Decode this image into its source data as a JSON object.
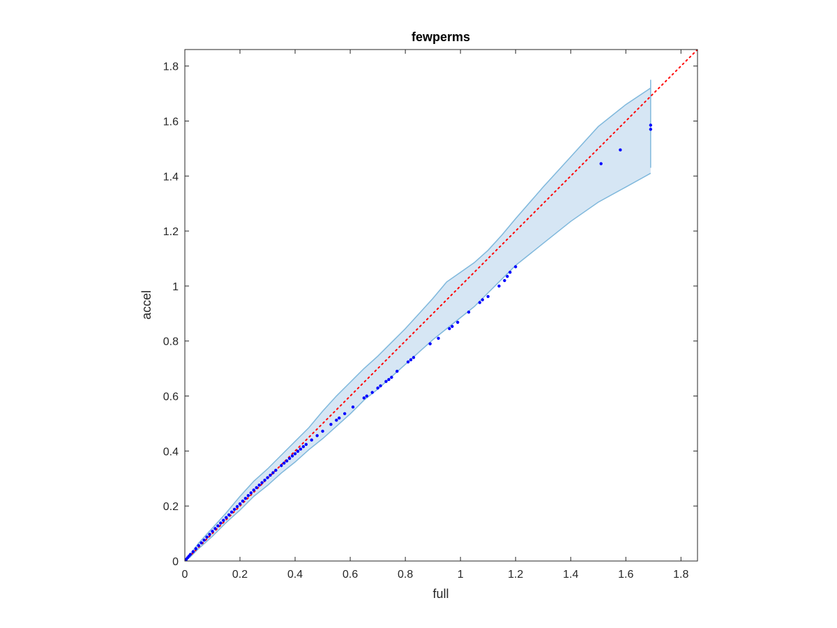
{
  "chart_data": {
    "type": "scatter",
    "title": "fewperms",
    "xlabel": "full",
    "ylabel": "accel",
    "xlim": [
      0,
      1.86
    ],
    "ylim": [
      0,
      1.86
    ],
    "xticks": [
      "0",
      "0.2",
      "0.4",
      "0.6",
      "0.8",
      "1",
      "1.2",
      "1.4",
      "1.6",
      "1.8"
    ],
    "yticks": [
      "0",
      "0.2",
      "0.4",
      "0.6",
      "0.8",
      "1",
      "1.2",
      "1.4",
      "1.6",
      "1.8"
    ],
    "grid": false,
    "colors": {
      "points": "#0000ff",
      "reference_line": "#ff0000",
      "band_fill": "#d6e6f4",
      "band_edge": "#7fb8dc",
      "axes": "#262626"
    },
    "reference_line": {
      "style": "dotted",
      "x": [
        0,
        1.86
      ],
      "y": [
        0,
        1.86
      ]
    },
    "band": {
      "x": [
        0,
        0.02,
        0.05,
        0.1,
        0.15,
        0.2,
        0.25,
        0.3,
        0.35,
        0.4,
        0.45,
        0.5,
        0.55,
        0.6,
        0.65,
        0.7,
        0.75,
        0.8,
        0.85,
        0.9,
        0.95,
        1.0,
        1.05,
        1.1,
        1.15,
        1.2,
        1.3,
        1.4,
        1.5,
        1.6,
        1.69
      ],
      "upper": [
        0,
        0.025,
        0.065,
        0.12,
        0.175,
        0.235,
        0.29,
        0.335,
        0.385,
        0.435,
        0.485,
        0.545,
        0.6,
        0.65,
        0.7,
        0.745,
        0.795,
        0.845,
        0.9,
        0.955,
        1.015,
        1.05,
        1.085,
        1.13,
        1.185,
        1.245,
        1.36,
        1.47,
        1.58,
        1.66,
        1.72
      ],
      "lower": [
        0,
        0.015,
        0.045,
        0.09,
        0.14,
        0.185,
        0.235,
        0.275,
        0.32,
        0.36,
        0.405,
        0.445,
        0.49,
        0.535,
        0.585,
        0.625,
        0.67,
        0.715,
        0.76,
        0.805,
        0.845,
        0.885,
        0.925,
        0.975,
        1.025,
        1.075,
        1.155,
        1.235,
        1.305,
        1.36,
        1.41
      ]
    },
    "band_edge_end": [
      1.43,
      1.75
    ],
    "series": [
      {
        "x": [
          0.0,
          0.005,
          0.01,
          0.015,
          0.02,
          0.03,
          0.04,
          0.05,
          0.06,
          0.07,
          0.08,
          0.09,
          0.1,
          0.11,
          0.12,
          0.13,
          0.14,
          0.15,
          0.16,
          0.17,
          0.18,
          0.19,
          0.2,
          0.21,
          0.22,
          0.23,
          0.24,
          0.25,
          0.26,
          0.27,
          0.28,
          0.29,
          0.3,
          0.31,
          0.32,
          0.33,
          0.35,
          0.36,
          0.37,
          0.38,
          0.39,
          0.4,
          0.41,
          0.42,
          0.43,
          0.44,
          0.46,
          0.48,
          0.5,
          0.53,
          0.55,
          0.56,
          0.58,
          0.61,
          0.65,
          0.66,
          0.68,
          0.7,
          0.71,
          0.73,
          0.74,
          0.75,
          0.77,
          0.81,
          0.82,
          0.83,
          0.89,
          0.92,
          0.96,
          0.97,
          0.99,
          1.03,
          1.07,
          1.08,
          1.1,
          1.14,
          1.16,
          1.17,
          1.18,
          1.2,
          1.51,
          1.58,
          1.69,
          1.69
        ],
        "y": [
          0.0,
          0.006,
          0.012,
          0.018,
          0.024,
          0.034,
          0.045,
          0.056,
          0.066,
          0.076,
          0.087,
          0.097,
          0.108,
          0.118,
          0.128,
          0.138,
          0.148,
          0.158,
          0.168,
          0.178,
          0.188,
          0.198,
          0.208,
          0.218,
          0.228,
          0.238,
          0.248,
          0.258,
          0.267,
          0.276,
          0.285,
          0.294,
          0.303,
          0.312,
          0.321,
          0.33,
          0.347,
          0.356,
          0.364,
          0.373,
          0.382,
          0.39,
          0.399,
          0.407,
          0.416,
          0.424,
          0.44,
          0.456,
          0.472,
          0.497,
          0.512,
          0.52,
          0.536,
          0.56,
          0.593,
          0.6,
          0.613,
          0.629,
          0.637,
          0.653,
          0.66,
          0.668,
          0.69,
          0.724,
          0.732,
          0.74,
          0.79,
          0.81,
          0.845,
          0.853,
          0.868,
          0.905,
          0.94,
          0.95,
          0.962,
          1.0,
          1.02,
          1.035,
          1.05,
          1.07,
          1.445,
          1.495,
          1.57,
          1.585
        ]
      }
    ]
  }
}
